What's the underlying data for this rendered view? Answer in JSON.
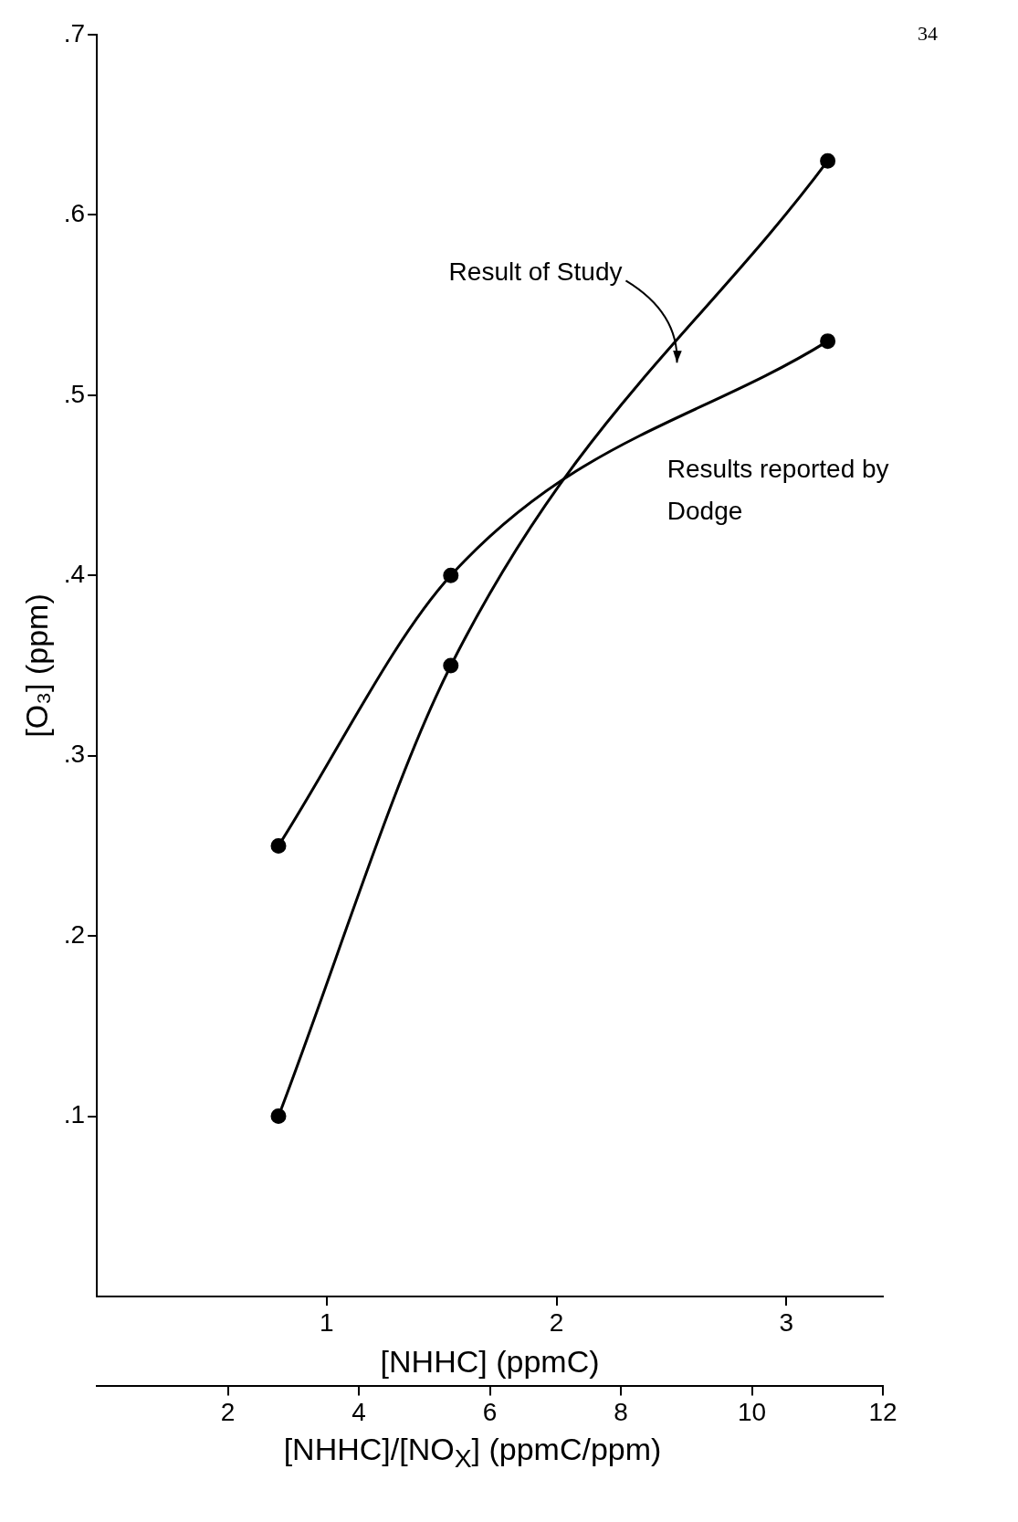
{
  "chart_data": {
    "type": "line",
    "xlabel": "[NHHC] (ppmC)",
    "ylabel": "[O₃] (ppm)",
    "x2label": "[NHHC]/[NO$_{X}$] (ppmC/ppm)",
    "xlim": [
      0,
      3.42
    ],
    "xticks": [
      1,
      2,
      3
    ],
    "x2lim": [
      0,
      12
    ],
    "x2ticks": [
      2,
      4,
      6,
      8,
      10,
      12
    ],
    "ylim": [
      0,
      0.7
    ],
    "yticks": [
      {
        "value": 0.1,
        "label": ".1"
      },
      {
        "value": 0.2,
        "label": ".2"
      },
      {
        "value": 0.3,
        "label": ".3"
      },
      {
        "value": 0.4,
        "label": ".4"
      },
      {
        "value": 0.5,
        "label": ".5"
      },
      {
        "value": 0.6,
        "label": ".6"
      },
      {
        "value": 0.7,
        "label": ".7"
      }
    ],
    "grid": false,
    "legend": false,
    "marker": "circle",
    "line_style": "solid",
    "annotations": [
      "34"
    ],
    "series": [
      {
        "name": "Result of Study",
        "color": "#000000",
        "x": [
          0.79,
          1.54,
          3.18
        ],
        "values": [
          0.1,
          0.35,
          0.63
        ]
      },
      {
        "name": "Results reported by Dodge",
        "color": "#000000",
        "x": [
          0.79,
          1.54,
          3.18
        ],
        "values": [
          0.25,
          0.4,
          0.53
        ]
      }
    ]
  }
}
